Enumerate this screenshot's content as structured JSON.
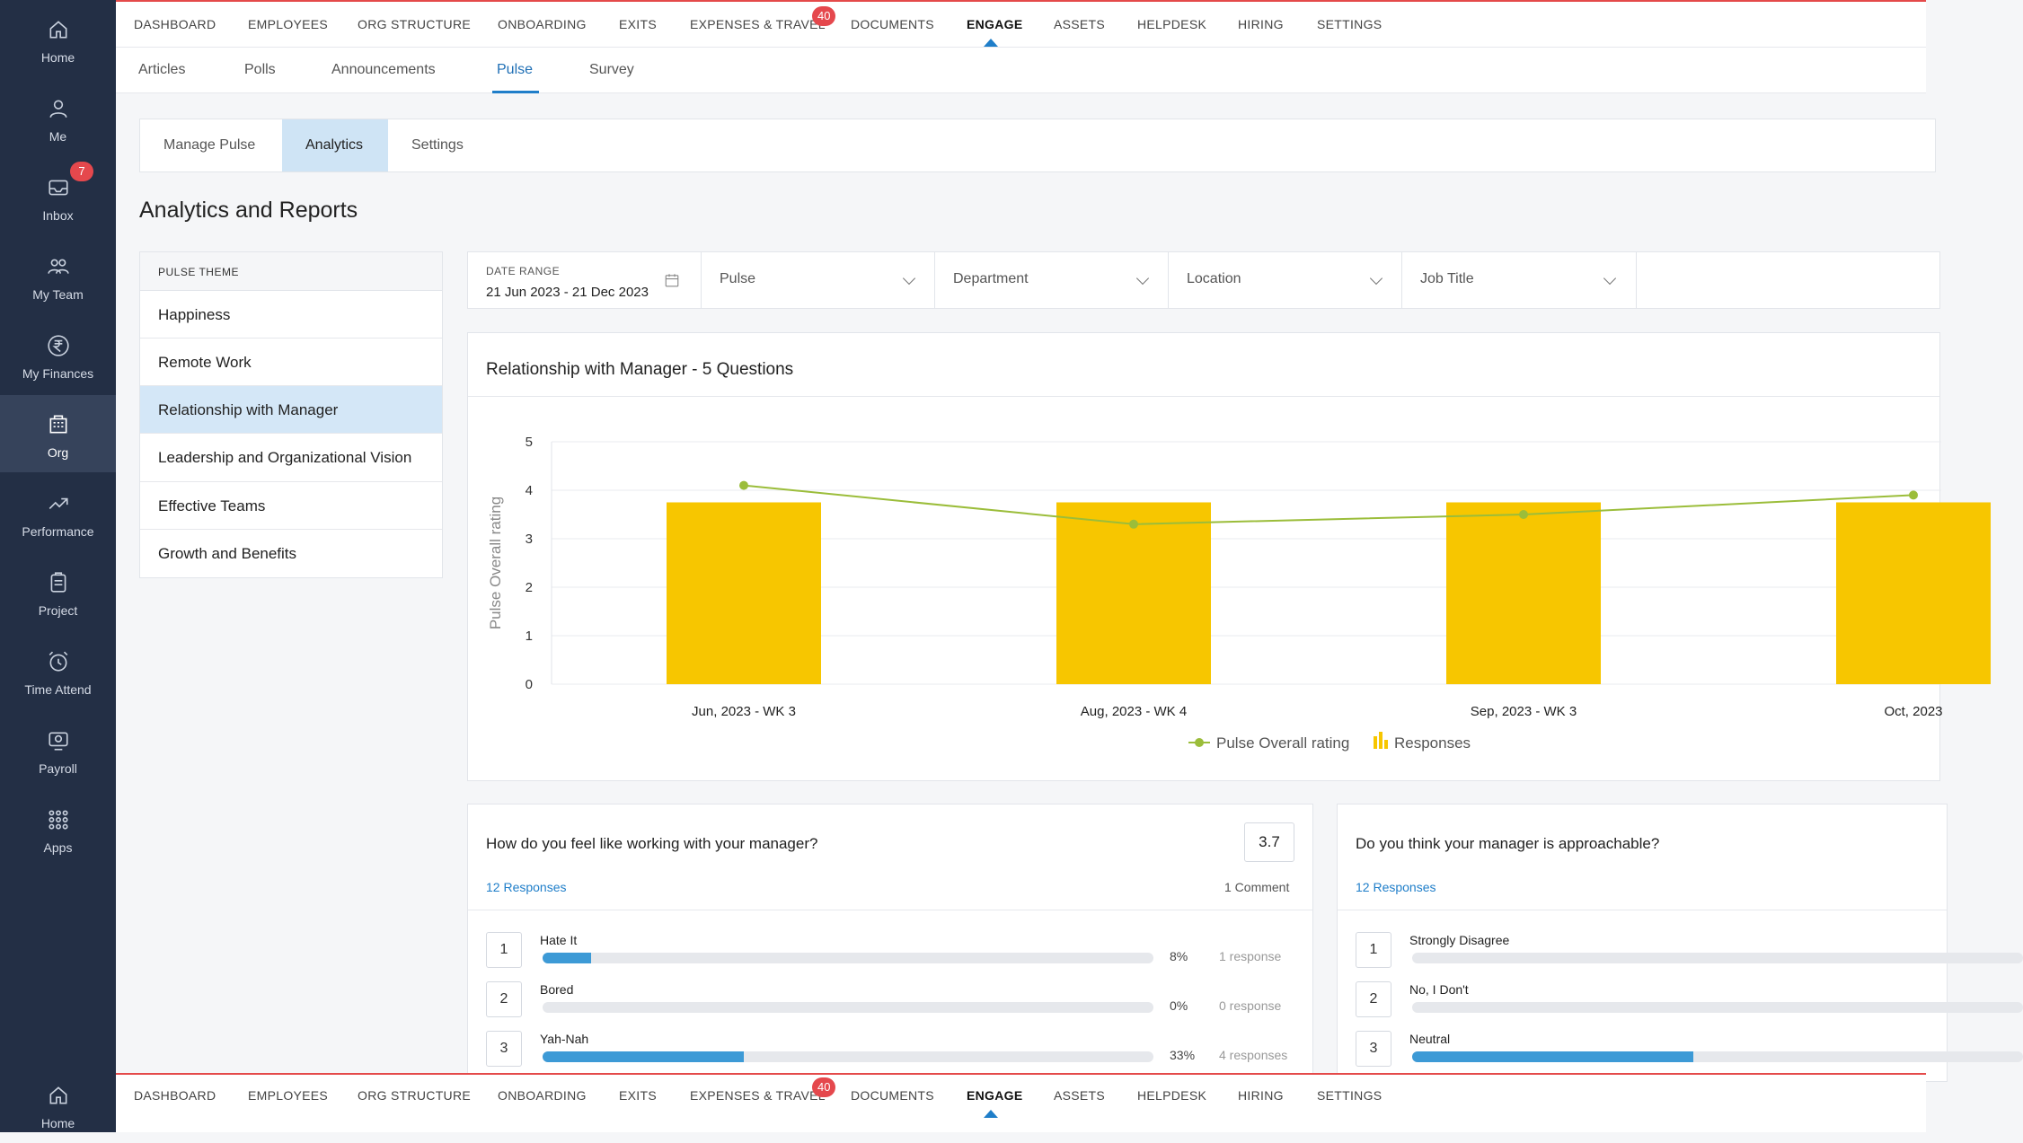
{
  "sidebar": {
    "items": [
      {
        "label": "Home",
        "icon": "home-icon"
      },
      {
        "label": "Me",
        "icon": "user-icon"
      },
      {
        "label": "Inbox",
        "icon": "inbox-icon",
        "badge": "7"
      },
      {
        "label": "My Team",
        "icon": "team-icon"
      },
      {
        "label": "My Finances",
        "icon": "rupee-icon"
      },
      {
        "label": "Org",
        "icon": "org-icon"
      },
      {
        "label": "Performance",
        "icon": "trend-icon"
      },
      {
        "label": "Project",
        "icon": "clipboard-icon"
      },
      {
        "label": "Time Attend",
        "icon": "alarm-icon"
      },
      {
        "label": "Payroll",
        "icon": "payroll-icon"
      },
      {
        "label": "Apps",
        "icon": "apps-icon"
      }
    ],
    "bottom_label": "Home"
  },
  "topnav": {
    "items": [
      "DASHBOARD",
      "EMPLOYEES",
      "ORG STRUCTURE",
      "ONBOARDING",
      "EXITS",
      "EXPENSES & TRAVEL",
      "DOCUMENTS",
      "ENGAGE",
      "ASSETS",
      "HELPDESK",
      "HIRING",
      "SETTINGS"
    ],
    "active": "ENGAGE",
    "expenses_badge": "40"
  },
  "subtabs": {
    "items": [
      "Articles",
      "Polls",
      "Announcements",
      "Pulse",
      "Survey"
    ],
    "active": "Pulse"
  },
  "modetabs": {
    "items": [
      "Manage Pulse",
      "Analytics",
      "Settings"
    ],
    "active": "Analytics"
  },
  "page_title": "Analytics and Reports",
  "themes": {
    "header": "PULSE THEME",
    "items": [
      "Happiness",
      "Remote Work",
      "Relationship with Manager",
      "Leadership and Organizational Vision",
      "Effective Teams",
      "Growth and Benefits"
    ],
    "active": "Relationship with Manager"
  },
  "filters": {
    "date_label": "DATE RANGE",
    "date_value": "21 Jun 2023 - 21 Dec 2023",
    "pulse": "Pulse",
    "department": "Department",
    "location": "Location",
    "job_title": "Job Title"
  },
  "chart_card": {
    "title": "Relationship with Manager - 5 Questions"
  },
  "chart_data": {
    "type": "bar",
    "categories": [
      "Jun, 2023 - WK 3",
      "Aug, 2023 - WK 4",
      "Sep, 2023 - WK 3",
      "Oct, 2023"
    ],
    "ylabel": "Pulse Overall rating",
    "ylim": [
      0,
      5
    ],
    "yticks": [
      0,
      1,
      2,
      3,
      4,
      5
    ],
    "series": [
      {
        "name": "Responses",
        "type": "bar",
        "values": [
          3.75,
          3.75,
          3.75,
          3.75
        ],
        "color": "#f7c600"
      },
      {
        "name": "Pulse Overall rating",
        "type": "line",
        "values": [
          4.1,
          3.3,
          3.5,
          3.9
        ],
        "color": "#9bbd3a"
      }
    ],
    "legend": "bottom-center",
    "grid": true
  },
  "questions": [
    {
      "title": "How do you feel like working with your manager?",
      "score": "3.7",
      "responses": "12 Responses",
      "comments": "1 Comment",
      "options": [
        {
          "num": "1",
          "label": "Hate It",
          "pct_label": "8%",
          "fill": 0.08,
          "count": "1 response"
        },
        {
          "num": "2",
          "label": "Bored",
          "pct_label": "0%",
          "fill": 0,
          "count": "0 response"
        },
        {
          "num": "3",
          "label": "Yah-Nah",
          "pct_label": "33%",
          "fill": 0.33,
          "count": "4 responses"
        }
      ]
    },
    {
      "title": "Do you think your manager is approachable?",
      "responses": "12 Responses",
      "options": [
        {
          "num": "1",
          "label": "Strongly Disagree",
          "fill": 0
        },
        {
          "num": "2",
          "label": "No, I Don't",
          "fill": 0
        },
        {
          "num": "3",
          "label": "Neutral",
          "fill": 0.46
        }
      ]
    }
  ],
  "colors": {
    "sidebar_bg": "#232f45",
    "accent_blue": "#1f7ec9",
    "badge_red": "#e5484d",
    "bar_yellow": "#f7c600",
    "line_green": "#9bbd3a"
  }
}
